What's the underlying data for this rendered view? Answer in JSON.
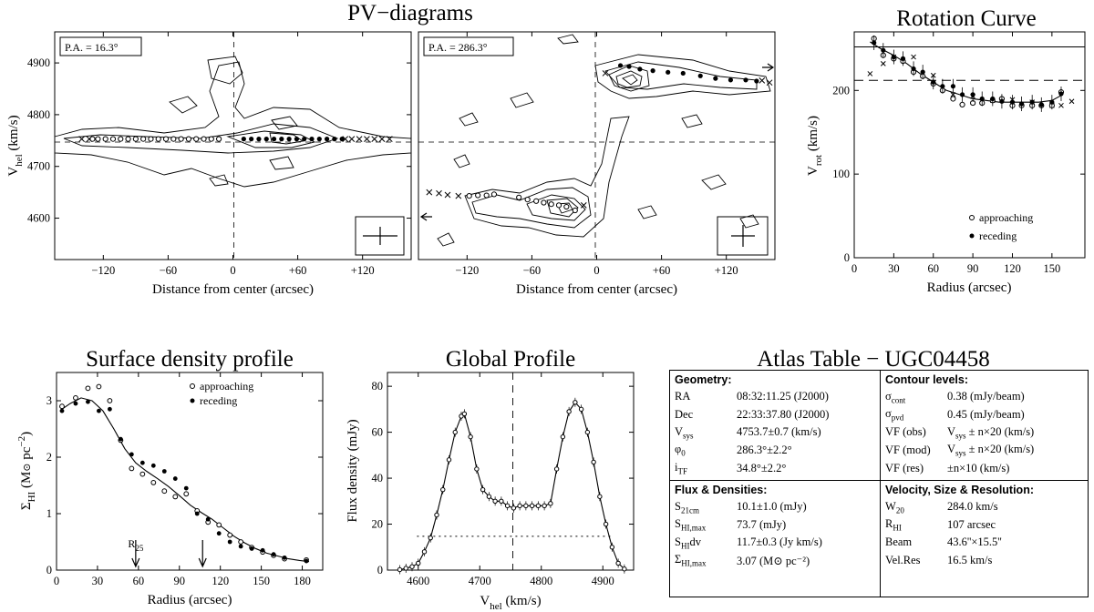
{
  "chart_data": [
    {
      "id": "pv1",
      "type": "scatter",
      "title": "PV−diagrams",
      "xlabel": "Distance from center (arcsec)",
      "ylabel": "V_hel (km/s)",
      "xlim": [
        -165,
        165
      ],
      "ylim": [
        4520,
        4960
      ],
      "xticks": [
        "−120",
        "−60",
        "0",
        "+60",
        "+120"
      ],
      "yticks": [
        "4600",
        "4700",
        "4800",
        "4900"
      ],
      "pa_label": "P.A. = 16.3°",
      "vsys": 4753.7,
      "approaching": [
        [
          -130,
          4753
        ],
        [
          -125,
          4753
        ],
        [
          -118,
          4753
        ],
        [
          -111,
          4753
        ],
        [
          -104,
          4753
        ],
        [
          -97,
          4753
        ],
        [
          -90,
          4753
        ],
        [
          -83,
          4753
        ],
        [
          -76,
          4753
        ],
        [
          -69,
          4753
        ],
        [
          -62,
          4753
        ],
        [
          -55,
          4753
        ],
        [
          -48,
          4753
        ],
        [
          -41,
          4753
        ],
        [
          -34,
          4753
        ],
        [
          -27,
          4753
        ],
        [
          -20,
          4753
        ],
        [
          -13,
          4753
        ]
      ],
      "receding": [
        [
          10,
          4753
        ],
        [
          17,
          4753
        ],
        [
          24,
          4753
        ],
        [
          31,
          4753
        ],
        [
          38,
          4753
        ],
        [
          45,
          4753
        ],
        [
          52,
          4753
        ],
        [
          59,
          4753
        ],
        [
          66,
          4753
        ],
        [
          73,
          4753
        ],
        [
          80,
          4753
        ],
        [
          87,
          4753
        ],
        [
          94,
          4753
        ],
        [
          101,
          4753
        ]
      ],
      "crosses": [
        [
          -140,
          4753
        ],
        [
          -133,
          4753
        ],
        [
          104,
          4753
        ],
        [
          110,
          4753
        ],
        [
          117,
          4753
        ],
        [
          124,
          4753
        ],
        [
          131,
          4753
        ],
        [
          138,
          4753
        ],
        [
          145,
          4753
        ]
      ]
    },
    {
      "id": "pv2",
      "type": "scatter",
      "title": "",
      "xlabel": "Distance from center (arcsec)",
      "ylabel": "",
      "xlim": [
        -165,
        165
      ],
      "ylim": [
        4520,
        4960
      ],
      "xticks": [
        "−120",
        "−60",
        "0",
        "+60",
        "+120"
      ],
      "yticks": [],
      "pa_label": "P.A. = 286.3°",
      "vsys": 4753.7,
      "approaching": [
        [
          -118,
          4643
        ],
        [
          -110,
          4644
        ],
        [
          -102,
          4644
        ],
        [
          -95,
          4646
        ],
        [
          -72,
          4640
        ],
        [
          -64,
          4636
        ],
        [
          -56,
          4633
        ],
        [
          -49,
          4630
        ],
        [
          -42,
          4627
        ],
        [
          -35,
          4625
        ],
        [
          -28,
          4622
        ],
        [
          -20,
          4615
        ]
      ],
      "receding": [
        [
          22,
          4895
        ],
        [
          30,
          4893
        ],
        [
          40,
          4888
        ],
        [
          52,
          4885
        ],
        [
          66,
          4882
        ],
        [
          80,
          4880
        ],
        [
          96,
          4875
        ],
        [
          110,
          4870
        ],
        [
          124,
          4867
        ],
        [
          138,
          4867
        ],
        [
          148,
          4865
        ]
      ],
      "crosses": [
        [
          -155,
          4650
        ],
        [
          -146,
          4648
        ],
        [
          -138,
          4645
        ],
        [
          -128,
          4643
        ],
        [
          -12,
          4625
        ],
        [
          8,
          4880
        ],
        [
          153,
          4866
        ],
        [
          160,
          4862
        ]
      ]
    },
    {
      "id": "rot",
      "type": "scatter",
      "title": "Rotation Curve",
      "xlabel": "Radius (arcsec)",
      "ylabel": "V_rot (km/s)",
      "xlim": [
        0,
        175
      ],
      "ylim": [
        0,
        270
      ],
      "xticks": [
        "0",
        "30",
        "60",
        "90",
        "120",
        "150"
      ],
      "yticks": [
        "0",
        "100",
        "200"
      ],
      "hlines": [
        252,
        212
      ],
      "legend": [
        "approaching",
        "receding"
      ],
      "approaching": [
        [
          15,
          262
        ],
        [
          22,
          242
        ],
        [
          30,
          238
        ],
        [
          37,
          235
        ],
        [
          45,
          222
        ],
        [
          52,
          217
        ],
        [
          60,
          208
        ],
        [
          67,
          200
        ],
        [
          75,
          190
        ],
        [
          82,
          183
        ],
        [
          90,
          185
        ],
        [
          97,
          185
        ],
        [
          105,
          188
        ],
        [
          112,
          190
        ],
        [
          120,
          182
        ],
        [
          127,
          182
        ],
        [
          135,
          182
        ],
        [
          142,
          182
        ],
        [
          150,
          182
        ],
        [
          157,
          198
        ]
      ],
      "receding": [
        [
          15,
          257
        ],
        [
          22,
          248
        ],
        [
          30,
          240
        ],
        [
          37,
          238
        ],
        [
          45,
          226
        ],
        [
          52,
          222
        ],
        [
          60,
          210
        ],
        [
          67,
          205
        ],
        [
          75,
          205
        ],
        [
          82,
          195
        ],
        [
          90,
          195
        ],
        [
          97,
          190
        ],
        [
          105,
          190
        ],
        [
          112,
          187
        ],
        [
          120,
          186
        ],
        [
          127,
          184
        ],
        [
          135,
          186
        ],
        [
          142,
          183
        ],
        [
          150,
          186
        ],
        [
          157,
          196
        ]
      ],
      "crosses": [
        [
          12,
          220
        ],
        [
          22,
          232
        ],
        [
          30,
          240
        ],
        [
          45,
          240
        ],
        [
          60,
          218
        ],
        [
          75,
          195
        ],
        [
          90,
          193
        ],
        [
          105,
          188
        ],
        [
          120,
          189
        ],
        [
          135,
          186
        ],
        [
          150,
          182
        ],
        [
          157,
          182
        ],
        [
          165,
          187
        ]
      ],
      "model": [
        [
          12,
          258
        ],
        [
          20,
          250
        ],
        [
          30,
          242
        ],
        [
          40,
          232
        ],
        [
          50,
          220
        ],
        [
          60,
          210
        ],
        [
          70,
          200
        ],
        [
          80,
          195
        ],
        [
          90,
          190
        ],
        [
          100,
          188
        ],
        [
          110,
          186
        ],
        [
          120,
          186
        ],
        [
          130,
          186
        ],
        [
          140,
          186
        ],
        [
          150,
          188
        ],
        [
          157,
          194
        ]
      ]
    },
    {
      "id": "sd",
      "type": "scatter",
      "title": "Surface density profile",
      "xlabel": "Radius (arcsec)",
      "ylabel": "Σ_HI (M⊙ pc^-2)",
      "xlim": [
        0,
        195
      ],
      "ylim": [
        0,
        3.5
      ],
      "xticks": [
        "0",
        "30",
        "60",
        "90",
        "120",
        "150",
        "180"
      ],
      "yticks": [
        "0",
        "1",
        "2",
        "3"
      ],
      "legend": [
        "approaching",
        "receding"
      ],
      "r25_label": "R25",
      "r25": 58,
      "rhi": 107,
      "approaching": [
        [
          4,
          2.9
        ],
        [
          14,
          3.05
        ],
        [
          23,
          3.22
        ],
        [
          31,
          3.25
        ],
        [
          39,
          3.0
        ],
        [
          47,
          2.3
        ],
        [
          55,
          1.8
        ],
        [
          63,
          1.7
        ],
        [
          71,
          1.55
        ],
        [
          79,
          1.4
        ],
        [
          87,
          1.3
        ],
        [
          95,
          1.35
        ],
        [
          103,
          1.05
        ],
        [
          111,
          0.85
        ],
        [
          119,
          0.8
        ],
        [
          127,
          0.62
        ],
        [
          135,
          0.5
        ],
        [
          143,
          0.4
        ],
        [
          151,
          0.32
        ],
        [
          159,
          0.26
        ],
        [
          167,
          0.2
        ],
        [
          183,
          0.18
        ]
      ],
      "receding": [
        [
          4,
          2.82
        ],
        [
          14,
          2.95
        ],
        [
          23,
          2.98
        ],
        [
          31,
          2.82
        ],
        [
          39,
          2.85
        ],
        [
          47,
          2.32
        ],
        [
          55,
          2.05
        ],
        [
          63,
          1.9
        ],
        [
          71,
          1.85
        ],
        [
          79,
          1.75
        ],
        [
          87,
          1.62
        ],
        [
          95,
          1.45
        ],
        [
          103,
          1.0
        ],
        [
          111,
          0.9
        ],
        [
          119,
          0.65
        ],
        [
          127,
          0.5
        ],
        [
          135,
          0.42
        ],
        [
          143,
          0.38
        ],
        [
          151,
          0.35
        ],
        [
          159,
          0.28
        ],
        [
          167,
          0.22
        ],
        [
          183,
          0.16
        ]
      ],
      "model": [
        [
          4,
          2.85
        ],
        [
          10,
          2.95
        ],
        [
          18,
          3.05
        ],
        [
          26,
          3.0
        ],
        [
          34,
          2.82
        ],
        [
          42,
          2.5
        ],
        [
          50,
          2.15
        ],
        [
          58,
          1.9
        ],
        [
          66,
          1.75
        ],
        [
          74,
          1.62
        ],
        [
          82,
          1.48
        ],
        [
          90,
          1.32
        ],
        [
          98,
          1.15
        ],
        [
          106,
          1.02
        ],
        [
          114,
          0.9
        ],
        [
          122,
          0.75
        ],
        [
          130,
          0.6
        ],
        [
          138,
          0.48
        ],
        [
          146,
          0.38
        ],
        [
          154,
          0.3
        ],
        [
          162,
          0.25
        ],
        [
          170,
          0.2
        ],
        [
          178,
          0.17
        ],
        [
          185,
          0.15
        ]
      ]
    },
    {
      "id": "gp",
      "type": "line",
      "title": "Global Profile",
      "xlabel": "V_hel (km/s)",
      "ylabel": "Flux density (mJy)",
      "xlim": [
        4550,
        4950
      ],
      "ylim": [
        0,
        86
      ],
      "xticks": [
        "4600",
        "4700",
        "4800",
        "4900"
      ],
      "yticks": [
        "0",
        "20",
        "40",
        "60",
        "80"
      ],
      "vsys": 4753.7,
      "w20_level": 14.7,
      "points": [
        [
          4570,
          0.2
        ],
        [
          4580,
          0.8
        ],
        [
          4590,
          1.5
        ],
        [
          4600,
          3
        ],
        [
          4610,
          8
        ],
        [
          4620,
          14
        ],
        [
          4630,
          24
        ],
        [
          4640,
          35
        ],
        [
          4650,
          48
        ],
        [
          4660,
          60
        ],
        [
          4670,
          67
        ],
        [
          4675,
          68
        ],
        [
          4685,
          58
        ],
        [
          4695,
          44
        ],
        [
          4705,
          35
        ],
        [
          4715,
          32
        ],
        [
          4725,
          30
        ],
        [
          4735,
          30
        ],
        [
          4745,
          28
        ],
        [
          4755,
          27
        ],
        [
          4765,
          28
        ],
        [
          4775,
          28
        ],
        [
          4785,
          28
        ],
        [
          4795,
          28
        ],
        [
          4805,
          28
        ],
        [
          4815,
          29
        ],
        [
          4825,
          44
        ],
        [
          4835,
          58
        ],
        [
          4845,
          69
        ],
        [
          4855,
          73
        ],
        [
          4865,
          70
        ],
        [
          4875,
          60
        ],
        [
          4885,
          47
        ],
        [
          4895,
          32
        ],
        [
          4905,
          20
        ],
        [
          4915,
          10
        ],
        [
          4925,
          3
        ],
        [
          4935,
          0.5
        ]
      ]
    },
    {
      "id": "atlas",
      "type": "table",
      "title": "Atlas Table − UGC04458"
    }
  ],
  "table": {
    "geometry": {
      "heading": "Geometry:",
      "rows": [
        {
          "key": "RA",
          "value": "08:32:11.25 (J2000)"
        },
        {
          "key": "Dec",
          "value": "22:33:37.80 (J2000)"
        },
        {
          "key": "V",
          "key_sub": "sys",
          "value": "4753.7±0.7 (km/s)"
        },
        {
          "key": "φ",
          "key_sub": "0",
          "value": "286.3°±2.2°"
        },
        {
          "key": "i",
          "key_sub": "TF",
          "value": "34.8°±2.2°"
        }
      ]
    },
    "contours": {
      "heading": "Contour levels:",
      "rows": [
        {
          "key": "σ",
          "key_sub": "cont",
          "value": "0.38 (mJy/beam)"
        },
        {
          "key": "σ",
          "key_sub": "pvd",
          "value": "0.45 (mJy/beam)"
        },
        {
          "key": "VF (obs)",
          "value": "V",
          "value_sub": "sys",
          "value_rest": " ± n×20 (km/s)"
        },
        {
          "key": "VF (mod)",
          "value": "V",
          "value_sub": "sys",
          "value_rest": " ± n×20 (km/s)"
        },
        {
          "key": "VF (res)",
          "value": "±n×10 (km/s)"
        }
      ]
    },
    "flux": {
      "heading": "Flux & Densities:",
      "rows": [
        {
          "key": "S",
          "key_sub": "21cm",
          "value": "10.1±1.0 (mJy)"
        },
        {
          "key": "S",
          "key_sub": "HI,max",
          "value": "73.7 (mJy)"
        },
        {
          "key": "S",
          "key_sub": "HI",
          "key_rest": "dv",
          "value": "11.7±0.3 (Jy km/s)"
        },
        {
          "key": "Σ",
          "key_sub": "HI,max",
          "value": "3.07 (M⊙ pc⁻²)"
        }
      ]
    },
    "velocity": {
      "heading": "Velocity, Size & Resolution:",
      "rows": [
        {
          "key": "W",
          "key_sub": "20",
          "value": "284.0 km/s"
        },
        {
          "key": "R",
          "key_sub": "HI",
          "value": "107 arcsec"
        },
        {
          "key": "Beam",
          "value": "43.6''×15.5''"
        },
        {
          "key": "Vel.Res",
          "value": "16.5 km/s"
        }
      ]
    }
  }
}
